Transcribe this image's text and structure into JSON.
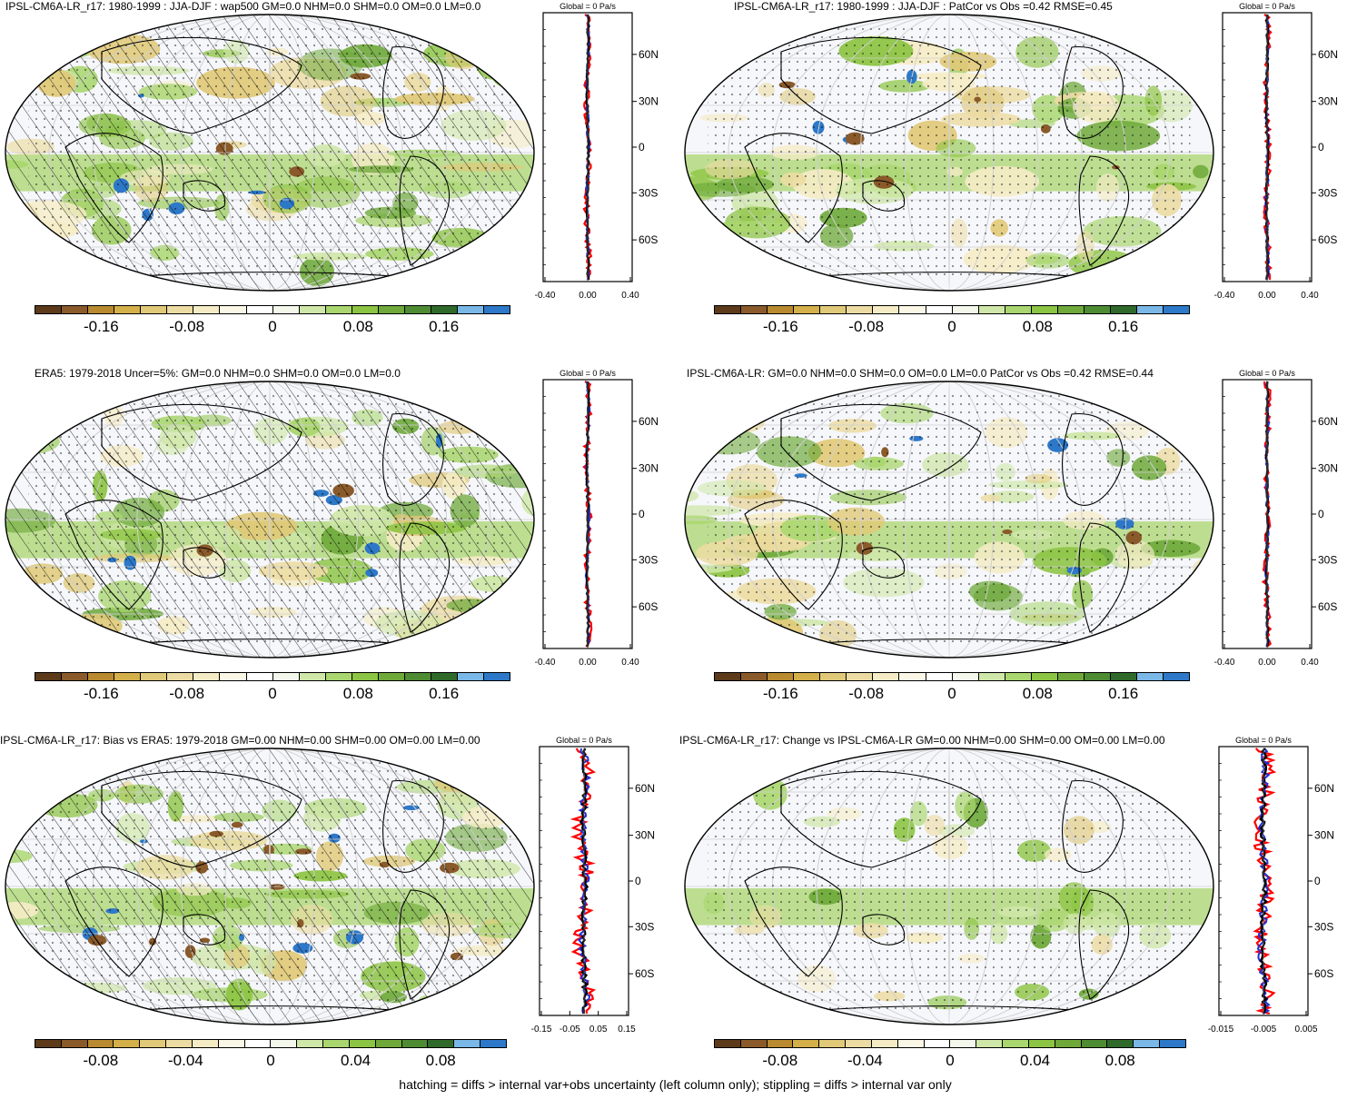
{
  "footer": "hatching = diffs > internal var+obs uncertainty (left column only); stippling = diffs > internal var only",
  "colorbar_colors": [
    "#5c3a1a",
    "#8a5a2b",
    "#b98a2f",
    "#d4b04a",
    "#e0c978",
    "#ecdca3",
    "#f5ecc6",
    "#fbf7e6",
    "#ffffff",
    "#f4f8ec",
    "#cfe7a8",
    "#a9d66e",
    "#8cc443",
    "#6ea93a",
    "#4e8c34",
    "#2f6a2a",
    "#7ab8e8",
    "#2d78c8"
  ],
  "profile_colors": {
    "red": "#ff0000",
    "blue": "#1f2fd6",
    "black": "#000000"
  },
  "chart_data": [
    {
      "type": "heatmap",
      "title": "IPSL-CM6A-LR_r17: 1980-1999 : JJA-DJF : wap500 GM=0.0 NHM=0.0 SHM=0.0 OM=0.0 LM=0.0",
      "colorbar": {
        "ticks": [
          "-0.16",
          "-0.08",
          "0",
          "0.08",
          "0.16"
        ]
      },
      "hatching": true,
      "profile": {
        "title": "Global = 0 Pa/s",
        "xticks": [
          "-0.40",
          "0.00",
          "0.40"
        ],
        "yticks": [
          "60N",
          "30N",
          "0",
          "30S",
          "60S"
        ]
      }
    },
    {
      "type": "heatmap",
      "title": "IPSL-CM6A-LR_r17: 1980-1999 : JJA-DJF : PatCor vs Obs =0.42 RMSE=0.45",
      "colorbar": {
        "ticks": [
          "-0.16",
          "-0.08",
          "0",
          "0.08",
          "0.16"
        ]
      },
      "hatching": false,
      "profile": {
        "title": "Global = 0 Pa/s",
        "xticks": [
          "-0.40",
          "0.00",
          "0.40"
        ],
        "yticks": [
          "60N",
          "30N",
          "0",
          "30S",
          "60S"
        ]
      }
    },
    {
      "type": "heatmap",
      "title": "ERA5: 1979-2018 Uncer=5%: GM=0.0 NHM=0.0 SHM=0.0 OM=0.0 LM=0.0",
      "colorbar": {
        "ticks": [
          "-0.16",
          "-0.08",
          "0",
          "0.08",
          "0.16"
        ]
      },
      "hatching": true,
      "profile": {
        "title": "Global = 0 Pa/s",
        "xticks": [
          "-0.40",
          "0.00",
          "0.40"
        ],
        "yticks": [
          "60N",
          "30N",
          "0",
          "30S",
          "60S"
        ]
      }
    },
    {
      "type": "heatmap",
      "title": "IPSL-CM6A-LR: GM=0.0 NHM=0.0 SHM=0.0 OM=0.0 LM=0.0 PatCor vs Obs =0.42 RMSE=0.44",
      "colorbar": {
        "ticks": [
          "-0.16",
          "-0.08",
          "0",
          "0.08",
          "0.16"
        ]
      },
      "hatching": false,
      "profile": {
        "title": "Global = 0 Pa/s",
        "xticks": [
          "-0.40",
          "0.00",
          "0.40"
        ],
        "yticks": [
          "60N",
          "30N",
          "0",
          "30S",
          "60S"
        ]
      }
    },
    {
      "type": "heatmap",
      "title": "IPSL-CM6A-LR_r17: Bias vs ERA5: 1979-2018 GM=0.00 NHM=0.00 SHM=0.00 OM=0.00 LM=0.00",
      "colorbar": {
        "ticks": [
          "-0.08",
          "-0.04",
          "0",
          "0.04",
          "0.08"
        ]
      },
      "hatching": true,
      "profile": {
        "title": "Global = 0 Pa/s",
        "xticks": [
          "-0.15",
          "-0.05",
          "0.05",
          "0.15"
        ],
        "yticks": [
          "60N",
          "30N",
          "0",
          "30S",
          "60S"
        ]
      }
    },
    {
      "type": "heatmap",
      "title": "IPSL-CM6A-LR_r17: Change vs IPSL-CM6A-LR GM=0.00 NHM=0.00 SHM=0.00 OM=0.00 LM=0.00",
      "colorbar": {
        "ticks": [
          "-0.08",
          "-0.04",
          "0",
          "0.04",
          "0.08"
        ]
      },
      "hatching": false,
      "profile": {
        "title": "Global = 0 Pa/s",
        "xticks": [
          "-0.015",
          "-0.005",
          "0.005"
        ],
        "yticks": [
          "60N",
          "30N",
          "0",
          "30S",
          "60S"
        ]
      }
    }
  ]
}
